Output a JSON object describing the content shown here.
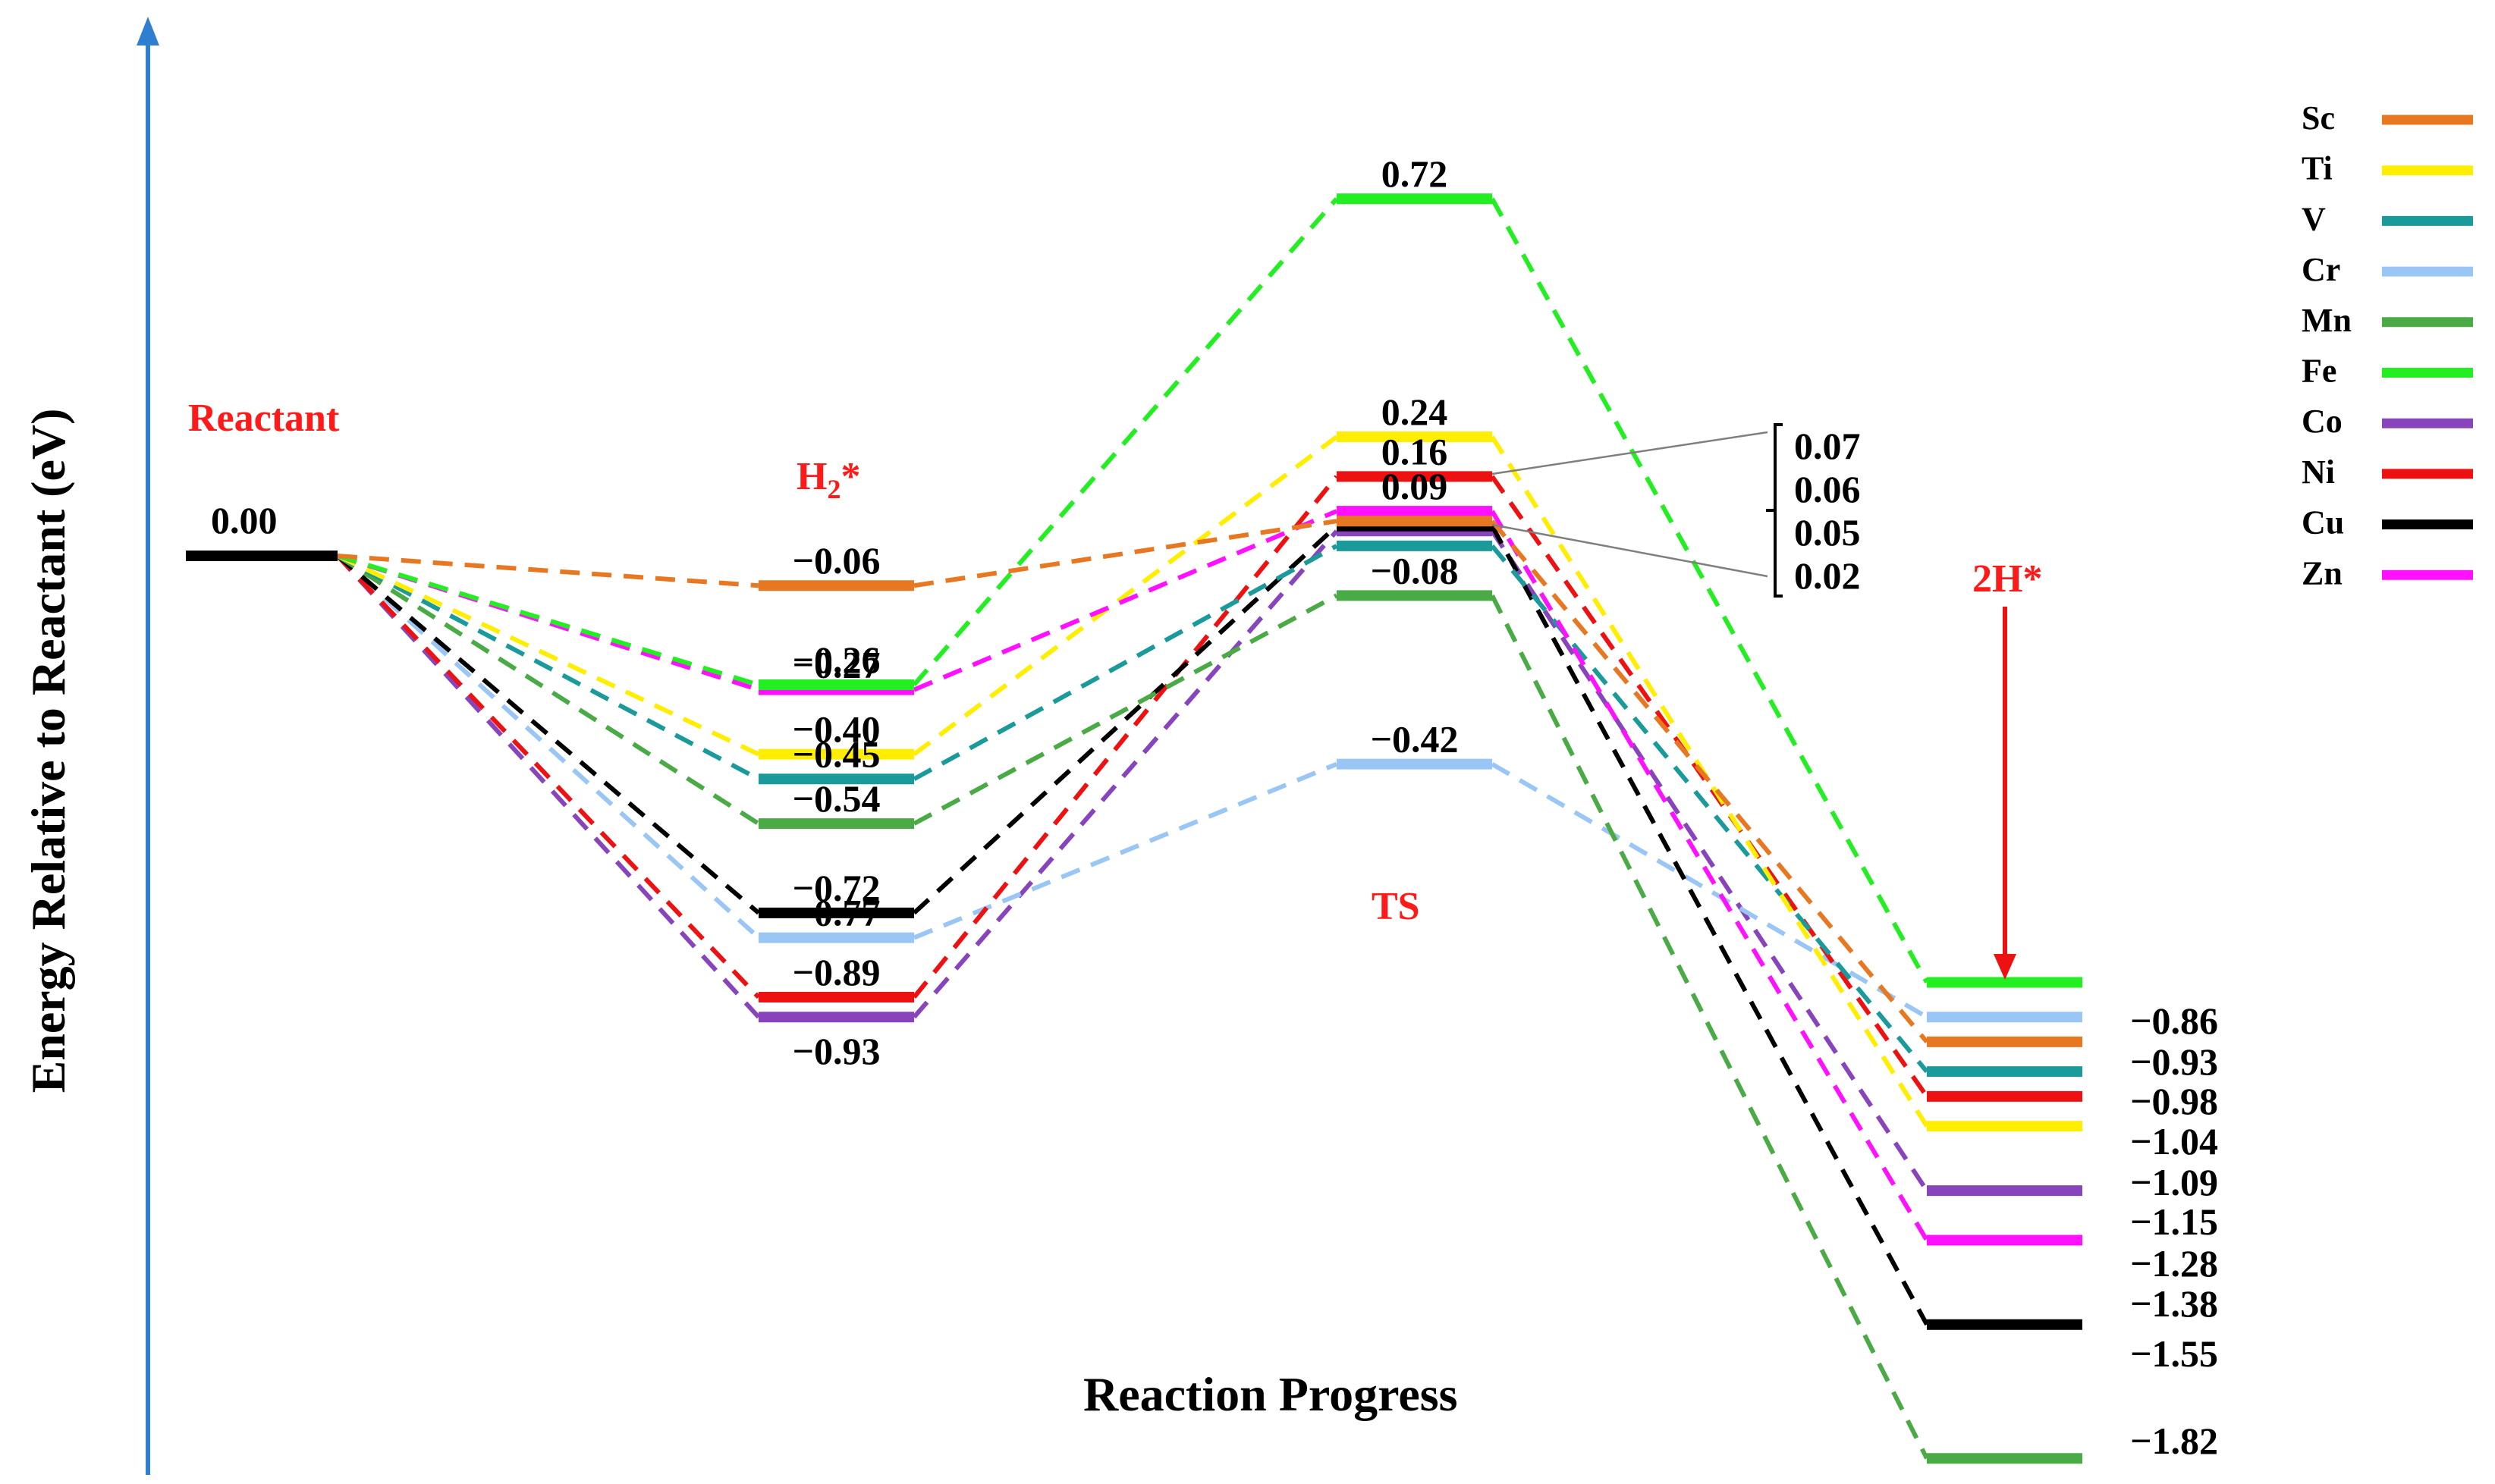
{
  "chart_data": {
    "type": "energy-profile",
    "xlabel": "Reaction Progress",
    "ylabel": "Energy Relative to Reactant (eV)",
    "stages": [
      "Reactant",
      "H2*",
      "TS",
      "2H*"
    ],
    "stage_labels": {
      "reactant": "Reactant",
      "h2_main": "H",
      "h2_sub": "2",
      "h2_tail": "*",
      "ts": "TS",
      "final": "2H*"
    },
    "reactant_label": "0.00",
    "reactant_value": 0.0,
    "series": [
      {
        "name": "Sc",
        "color": "#e87722",
        "h2": -0.06,
        "ts": 0.07,
        "final": -0.98,
        "h2_label": "−0.06",
        "ts_label": "",
        "final_label": "−0.98"
      },
      {
        "name": "Ti",
        "color": "#ffee00",
        "h2": -0.4,
        "ts": 0.24,
        "final": -1.15,
        "h2_label": "−0.40",
        "ts_label": "0.24",
        "final_label": "−1.15"
      },
      {
        "name": "V",
        "color": "#1a9a9a",
        "h2": -0.45,
        "ts": 0.02,
        "final": -1.04,
        "h2_label": "−0.45",
        "ts_label": "",
        "final_label": "−1.04"
      },
      {
        "name": "Cr",
        "color": "#99c6f5",
        "h2": -0.77,
        "ts": -0.42,
        "final": -0.93,
        "h2_label": "−0.77",
        "ts_label": "−0.42",
        "final_label": "−0.93"
      },
      {
        "name": "Mn",
        "color": "#4aaa46",
        "h2": -0.54,
        "ts": -0.08,
        "final": -1.82,
        "h2_label": "−0.54",
        "ts_label": "−0.08",
        "final_label": "−1.82"
      },
      {
        "name": "Fe",
        "color": "#22ee22",
        "h2": -0.26,
        "ts": 0.72,
        "final": -0.86,
        "h2_label": "−0.26",
        "ts_label": "0.72",
        "final_label": "−0.86"
      },
      {
        "name": "Co",
        "color": "#8844bb",
        "h2": -0.93,
        "ts": 0.05,
        "final": -1.28,
        "h2_label": "−0.93",
        "ts_label": "",
        "final_label": "−1.28"
      },
      {
        "name": "Ni",
        "color": "#ee1111",
        "h2": -0.89,
        "ts": 0.16,
        "final": -1.09,
        "h2_label": "−0.89",
        "ts_label": "0.16",
        "final_label": "−1.09"
      },
      {
        "name": "Cu",
        "color": "#000000",
        "h2": -0.72,
        "ts": 0.06,
        "final": -1.55,
        "h2_label": "−0.72",
        "ts_label": "",
        "final_label": "−1.55"
      },
      {
        "name": "Zn",
        "color": "#ff11ff",
        "h2": -0.27,
        "ts": 0.09,
        "final": -1.38,
        "h2_label": "−0.27",
        "ts_label": "0.09",
        "final_label": "−1.38"
      }
    ],
    "bracket_labels": [
      "0.07",
      "0.06",
      "0.05",
      "0.02"
    ],
    "final_labels_order": [
      "−0.86",
      "−0.93",
      "−0.98",
      "−1.04",
      "−1.09",
      "−1.15",
      "−1.28",
      "−1.38",
      "−1.55",
      "−1.82"
    ],
    "legend": [
      "Sc",
      "Ti",
      "V",
      "Cr",
      "Mn",
      "Fe",
      "Co",
      "Ni",
      "Cu",
      "Zn"
    ],
    "ylim": [
      -1.82,
      0.72
    ],
    "colors": {
      "axis": "#2f7fd0",
      "stage_label": "#ff1a1a",
      "arrow": "#ee1111",
      "bracket": "#7f7f7f"
    }
  }
}
